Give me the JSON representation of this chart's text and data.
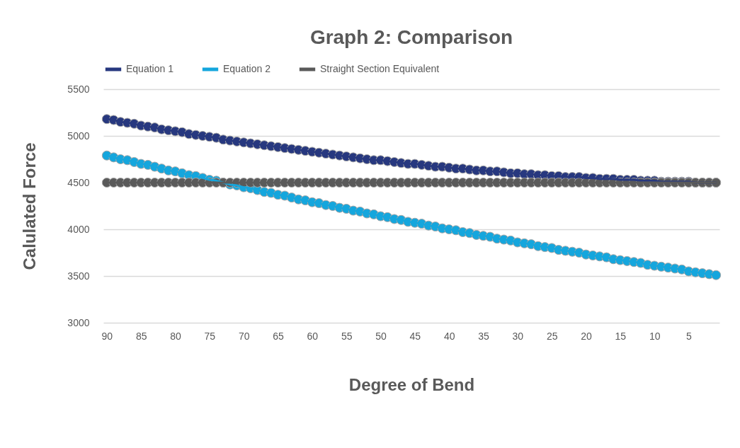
{
  "chart_data": {
    "type": "line",
    "title": "Graph 2: Comparison",
    "xlabel": "Degree of Bend",
    "ylabel": "Calulated Force",
    "categories": [
      "90",
      null,
      null,
      null,
      null,
      "85",
      null,
      null,
      null,
      null,
      "80",
      null,
      null,
      null,
      null,
      "75",
      null,
      null,
      null,
      null,
      "70",
      null,
      null,
      null,
      null,
      "65",
      null,
      null,
      null,
      null,
      "60",
      null,
      null,
      null,
      null,
      "55",
      null,
      null,
      null,
      null,
      "50",
      null,
      null,
      null,
      null,
      "45",
      null,
      null,
      null,
      null,
      "40",
      null,
      null,
      null,
      null,
      "35",
      null,
      null,
      null,
      null,
      "30",
      null,
      null,
      null,
      null,
      "25",
      null,
      null,
      null,
      null,
      "20",
      null,
      null,
      null,
      null,
      "15",
      null,
      null,
      null,
      null,
      "10",
      null,
      null,
      null,
      null,
      "5",
      null,
      null,
      null,
      null
    ],
    "series": [
      {
        "name": "Equation 1",
        "color": "#27387f",
        "values": [
          5180,
          5170,
          5150,
          5140,
          5130,
          5110,
          5100,
          5090,
          5070,
          5060,
          5050,
          5040,
          5020,
          5010,
          5000,
          4990,
          4980,
          4960,
          4950,
          4940,
          4930,
          4920,
          4910,
          4900,
          4890,
          4880,
          4870,
          4860,
          4850,
          4840,
          4830,
          4820,
          4810,
          4800,
          4790,
          4780,
          4770,
          4760,
          4750,
          4740,
          4740,
          4730,
          4720,
          4710,
          4700,
          4700,
          4690,
          4680,
          4670,
          4670,
          4660,
          4650,
          4650,
          4640,
          4630,
          4630,
          4620,
          4620,
          4610,
          4600,
          4600,
          4590,
          4590,
          4580,
          4580,
          4570,
          4570,
          4560,
          4560,
          4560,
          4550,
          4550,
          4540,
          4540,
          4540,
          4530,
          4530,
          4530,
          4520,
          4520,
          4520,
          4510,
          4510,
          4510,
          4510,
          4510,
          4500,
          4500,
          4500,
          4500
        ]
      },
      {
        "name": "Equation 2",
        "color": "#15a6dd",
        "values": [
          4790,
          4770,
          4750,
          4740,
          4720,
          4700,
          4690,
          4670,
          4650,
          4630,
          4620,
          4600,
          4580,
          4570,
          4550,
          4530,
          4520,
          4500,
          4480,
          4470,
          4450,
          4440,
          4420,
          4400,
          4390,
          4370,
          4360,
          4340,
          4320,
          4310,
          4290,
          4280,
          4260,
          4250,
          4230,
          4220,
          4200,
          4190,
          4170,
          4160,
          4140,
          4130,
          4110,
          4100,
          4080,
          4070,
          4060,
          4040,
          4030,
          4010,
          4000,
          3990,
          3970,
          3960,
          3940,
          3930,
          3920,
          3900,
          3890,
          3880,
          3860,
          3850,
          3840,
          3820,
          3810,
          3800,
          3780,
          3770,
          3760,
          3750,
          3730,
          3720,
          3710,
          3700,
          3680,
          3670,
          3660,
          3650,
          3640,
          3620,
          3610,
          3600,
          3590,
          3580,
          3570,
          3550,
          3540,
          3530,
          3520,
          3510
        ]
      },
      {
        "name": "Straight Section Equivalent",
        "color": "#5a5a5a",
        "values": [
          4500,
          4500,
          4500,
          4500,
          4500,
          4500,
          4500,
          4500,
          4500,
          4500,
          4500,
          4500,
          4500,
          4500,
          4500,
          4500,
          4500,
          4500,
          4500,
          4500,
          4500,
          4500,
          4500,
          4500,
          4500,
          4500,
          4500,
          4500,
          4500,
          4500,
          4500,
          4500,
          4500,
          4500,
          4500,
          4500,
          4500,
          4500,
          4500,
          4500,
          4500,
          4500,
          4500,
          4500,
          4500,
          4500,
          4500,
          4500,
          4500,
          4500,
          4500,
          4500,
          4500,
          4500,
          4500,
          4500,
          4500,
          4500,
          4500,
          4500,
          4500,
          4500,
          4500,
          4500,
          4500,
          4500,
          4500,
          4500,
          4500,
          4500,
          4500,
          4500,
          4500,
          4500,
          4500,
          4500,
          4500,
          4500,
          4500,
          4500,
          4500,
          4500,
          4500,
          4500,
          4500,
          4500,
          4500,
          4500,
          4500,
          4500
        ]
      }
    ],
    "ylim": [
      3000,
      5500
    ],
    "yticks": [
      3000,
      3500,
      4000,
      4500,
      5000,
      5500
    ],
    "grid": "y",
    "legend": "top",
    "marker": "circle"
  }
}
